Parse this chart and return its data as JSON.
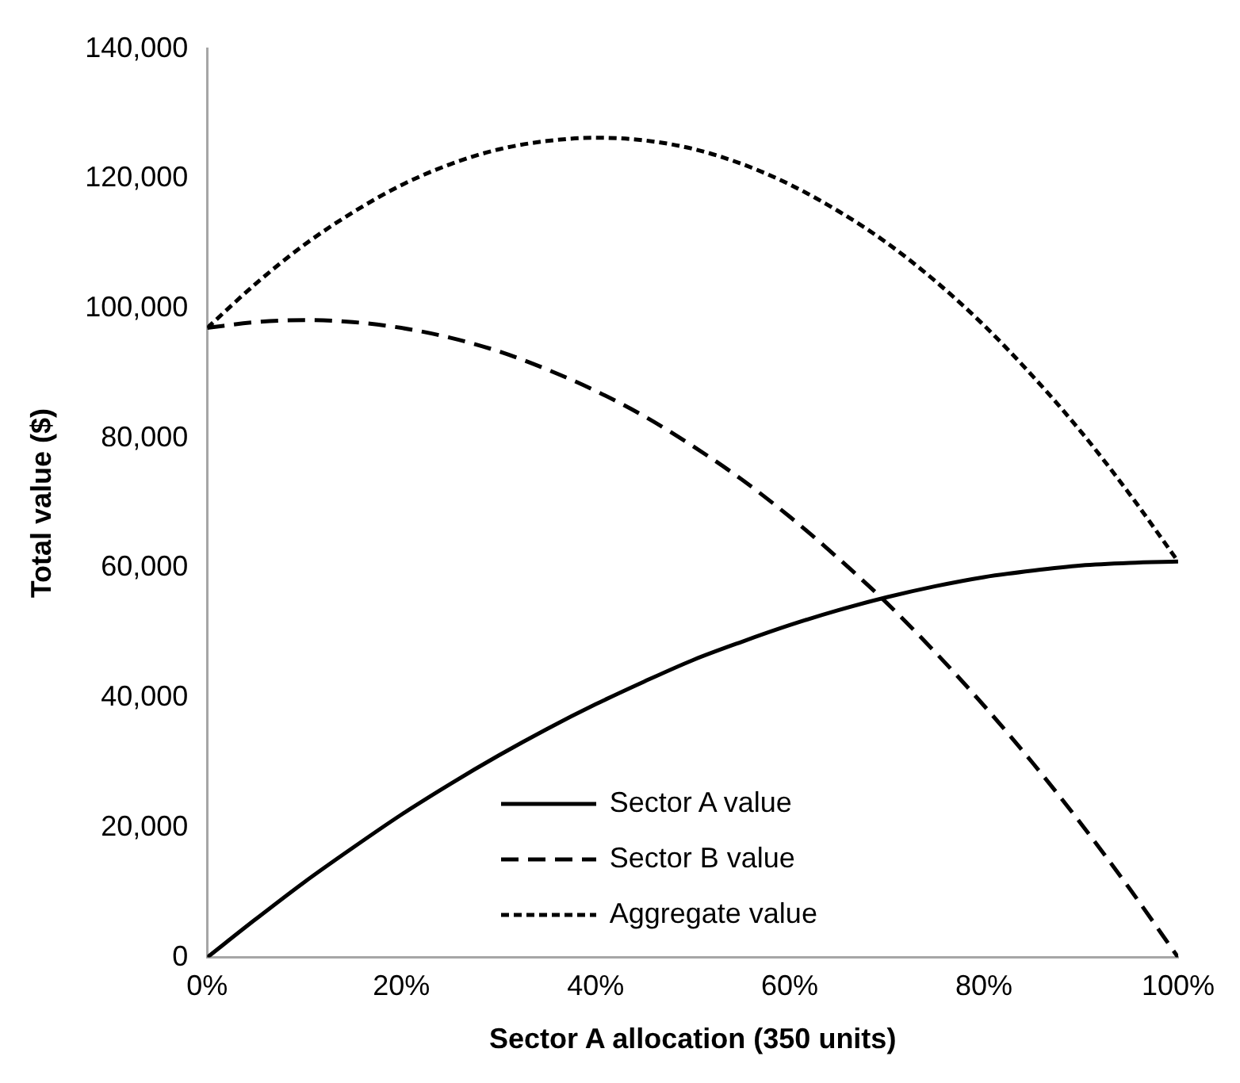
{
  "chart_data": {
    "type": "line",
    "xlabel": "Sector A allocation (350 units)",
    "ylabel": "Total value ($)",
    "x": [
      0,
      5,
      10,
      15,
      20,
      25,
      30,
      35,
      40,
      45,
      50,
      55,
      60,
      65,
      70,
      75,
      80,
      85,
      90,
      95,
      100
    ],
    "xlim": [
      0,
      100
    ],
    "xticks": [
      {
        "value": 0,
        "label": "0%"
      },
      {
        "value": 20,
        "label": "20%"
      },
      {
        "value": 40,
        "label": "40%"
      },
      {
        "value": 60,
        "label": "60%"
      },
      {
        "value": 80,
        "label": "80%"
      },
      {
        "value": 100,
        "label": "100%"
      }
    ],
    "ylim": [
      0,
      140000
    ],
    "yticks": [
      {
        "value": 0,
        "label": "0"
      },
      {
        "value": 20000,
        "label": "20,000"
      },
      {
        "value": 40000,
        "label": "40,000"
      },
      {
        "value": 60000,
        "label": "60,000"
      },
      {
        "value": 80000,
        "label": "80,000"
      },
      {
        "value": 100000,
        "label": "100,000"
      },
      {
        "value": 120000,
        "label": "120,000"
      },
      {
        "value": 140000,
        "label": "140,000"
      }
    ],
    "series": [
      {
        "name": "Sector A value",
        "color": "#000000",
        "line_style": "solid",
        "values": [
          0,
          5900,
          11600,
          16900,
          22000,
          26700,
          31100,
          35200,
          39000,
          42500,
          45800,
          48600,
          51200,
          53500,
          55500,
          57200,
          58600,
          59600,
          60400,
          60800,
          61000
        ]
      },
      {
        "name": "Sector B value",
        "color": "#000000",
        "line_style": "dashed",
        "values": [
          97000,
          97900,
          98200,
          97900,
          97000,
          95500,
          93400,
          90600,
          87300,
          83400,
          78800,
          73700,
          67900,
          61500,
          54600,
          47000,
          38800,
          30000,
          20600,
          10600,
          0
        ]
      },
      {
        "name": "Aggregate value",
        "color": "#000000",
        "line_style": "dotted",
        "values": [
          97000,
          103800,
          109800,
          114800,
          119000,
          122200,
          124500,
          125800,
          126300,
          125900,
          124600,
          122300,
          119100,
          115000,
          110100,
          104200,
          97400,
          89600,
          81000,
          71400,
          61000
        ]
      }
    ],
    "grid": false,
    "marker": "none",
    "legend": "bottom right"
  }
}
